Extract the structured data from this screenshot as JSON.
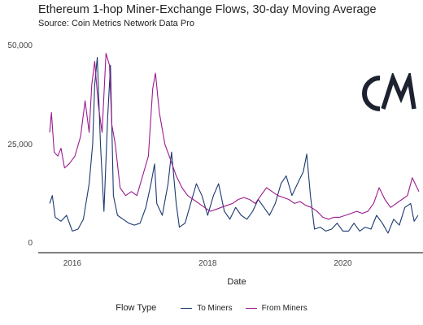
{
  "colors": {
    "to_miners": "#1a3a6e",
    "from_miners": "#9b1b8f",
    "axis": "#000000",
    "text": "#222222",
    "logo": "#1c2230"
  },
  "header": {
    "title": "Ethereum 1-hop Miner-Exchange Flows, 30-day Moving Average",
    "subtitle": "Source: Coin Metrics Network Data Pro"
  },
  "logo": {
    "text": "CM",
    "icon": "coin-metrics-logo"
  },
  "legend": {
    "title": "Flow Type",
    "items": [
      {
        "label": "To Miners",
        "color": "#1a3a6e"
      },
      {
        "label": "From Miners",
        "color": "#9b1b8f"
      }
    ]
  },
  "chart_data": {
    "type": "line",
    "title": "Ethereum 1-hop Miner-Exchange Flows, 30-day Moving Average",
    "subtitle": "Source: Coin Metrics Network Data Pro",
    "xlabel": "Date",
    "ylabel": "",
    "x_ticks": [
      "2016",
      "2018",
      "2020"
    ],
    "y_ticks": [
      "0",
      "25,000",
      "50,000"
    ],
    "ylim": [
      0,
      50000
    ],
    "xlim": [
      "2015-07-01",
      "2021-02-28"
    ],
    "grid": false,
    "legend_position": "bottom",
    "series": [
      {
        "name": "To Miners",
        "points": [
          [
            "2015-09-01",
            10000
          ],
          [
            "2015-09-15",
            12000
          ],
          [
            "2015-10-01",
            6500
          ],
          [
            "2015-11-01",
            5500
          ],
          [
            "2015-12-01",
            7000
          ],
          [
            "2016-01-01",
            3000
          ],
          [
            "2016-02-01",
            3500
          ],
          [
            "2016-03-01",
            6000
          ],
          [
            "2016-04-01",
            15000
          ],
          [
            "2016-04-20",
            25000
          ],
          [
            "2016-05-01",
            40000
          ],
          [
            "2016-05-15",
            47000
          ],
          [
            "2016-06-01",
            25000
          ],
          [
            "2016-06-20",
            8000
          ],
          [
            "2016-07-10",
            32000
          ],
          [
            "2016-07-25",
            45000
          ],
          [
            "2016-08-10",
            12000
          ],
          [
            "2016-09-01",
            7000
          ],
          [
            "2016-10-01",
            6000
          ],
          [
            "2016-11-01",
            5000
          ],
          [
            "2016-12-01",
            4500
          ],
          [
            "2017-01-01",
            5000
          ],
          [
            "2017-02-01",
            9000
          ],
          [
            "2017-03-01",
            15000
          ],
          [
            "2017-03-20",
            20000
          ],
          [
            "2017-04-01",
            10000
          ],
          [
            "2017-05-01",
            7000
          ],
          [
            "2017-06-01",
            15000
          ],
          [
            "2017-06-20",
            23000
          ],
          [
            "2017-07-15",
            10000
          ],
          [
            "2017-08-01",
            4000
          ],
          [
            "2017-09-01",
            5000
          ],
          [
            "2017-10-01",
            10000
          ],
          [
            "2017-11-01",
            15000
          ],
          [
            "2017-12-01",
            12000
          ],
          [
            "2018-01-01",
            7000
          ],
          [
            "2018-02-01",
            12000
          ],
          [
            "2018-03-01",
            15000
          ],
          [
            "2018-04-01",
            8000
          ],
          [
            "2018-05-01",
            6000
          ],
          [
            "2018-06-01",
            9000
          ],
          [
            "2018-07-01",
            7000
          ],
          [
            "2018-08-01",
            6000
          ],
          [
            "2018-09-01",
            8000
          ],
          [
            "2018-10-01",
            11000
          ],
          [
            "2018-11-01",
            9000
          ],
          [
            "2018-12-01",
            7000
          ],
          [
            "2019-01-01",
            10000
          ],
          [
            "2019-02-01",
            15000
          ],
          [
            "2019-03-01",
            17000
          ],
          [
            "2019-04-01",
            12000
          ],
          [
            "2019-05-01",
            15000
          ],
          [
            "2019-06-01",
            18000
          ],
          [
            "2019-06-20",
            22500
          ],
          [
            "2019-07-10",
            12000
          ],
          [
            "2019-08-01",
            3500
          ],
          [
            "2019-09-01",
            4000
          ],
          [
            "2019-10-01",
            3000
          ],
          [
            "2019-11-01",
            3500
          ],
          [
            "2019-12-01",
            5000
          ],
          [
            "2020-01-01",
            3000
          ],
          [
            "2020-02-01",
            3000
          ],
          [
            "2020-03-01",
            5000
          ],
          [
            "2020-04-01",
            3000
          ],
          [
            "2020-05-01",
            4000
          ],
          [
            "2020-06-01",
            3500
          ],
          [
            "2020-07-01",
            7000
          ],
          [
            "2020-08-01",
            5000
          ],
          [
            "2020-09-01",
            2500
          ],
          [
            "2020-10-01",
            6000
          ],
          [
            "2020-11-01",
            4500
          ],
          [
            "2020-12-01",
            9000
          ],
          [
            "2021-01-01",
            10000
          ],
          [
            "2021-01-20",
            5500
          ],
          [
            "2021-02-10",
            7000
          ]
        ]
      },
      {
        "name": "From Miners",
        "points": [
          [
            "2015-09-01",
            28000
          ],
          [
            "2015-09-10",
            33000
          ],
          [
            "2015-09-25",
            23000
          ],
          [
            "2015-10-15",
            22000
          ],
          [
            "2015-11-01",
            24000
          ],
          [
            "2015-11-20",
            19000
          ],
          [
            "2015-12-15",
            20000
          ],
          [
            "2016-01-15",
            22000
          ],
          [
            "2016-02-15",
            27000
          ],
          [
            "2016-03-10",
            36000
          ],
          [
            "2016-04-01",
            28000
          ],
          [
            "2016-04-15",
            40000
          ],
          [
            "2016-05-01",
            46000
          ],
          [
            "2016-05-20",
            35000
          ],
          [
            "2016-06-10",
            28000
          ],
          [
            "2016-07-01",
            48000
          ],
          [
            "2016-07-20",
            45000
          ],
          [
            "2016-08-01",
            30000
          ],
          [
            "2016-08-20",
            25000
          ],
          [
            "2016-09-15",
            14000
          ],
          [
            "2016-10-15",
            12000
          ],
          [
            "2016-11-15",
            13000
          ],
          [
            "2016-12-15",
            12000
          ],
          [
            "2017-01-15",
            17000
          ],
          [
            "2017-02-15",
            22000
          ],
          [
            "2017-03-10",
            39000
          ],
          [
            "2017-03-25",
            43000
          ],
          [
            "2017-04-15",
            33000
          ],
          [
            "2017-05-15",
            25000
          ],
          [
            "2017-06-15",
            21000
          ],
          [
            "2017-07-15",
            17000
          ],
          [
            "2017-08-15",
            14000
          ],
          [
            "2017-09-15",
            12000
          ],
          [
            "2017-10-15",
            11000
          ],
          [
            "2017-11-15",
            10000
          ],
          [
            "2017-12-15",
            9000
          ],
          [
            "2018-01-15",
            8000
          ],
          [
            "2018-02-15",
            8500
          ],
          [
            "2018-03-15",
            9000
          ],
          [
            "2018-04-15",
            9500
          ],
          [
            "2018-05-15",
            10000
          ],
          [
            "2018-06-15",
            11000
          ],
          [
            "2018-07-15",
            11500
          ],
          [
            "2018-08-15",
            11000
          ],
          [
            "2018-09-15",
            10000
          ],
          [
            "2018-10-15",
            12000
          ],
          [
            "2018-11-15",
            14000
          ],
          [
            "2018-12-15",
            13000
          ],
          [
            "2019-01-15",
            12000
          ],
          [
            "2019-02-15",
            11500
          ],
          [
            "2019-03-15",
            11000
          ],
          [
            "2019-04-15",
            10000
          ],
          [
            "2019-05-15",
            10500
          ],
          [
            "2019-06-15",
            9500
          ],
          [
            "2019-07-15",
            9000
          ],
          [
            "2019-08-15",
            8000
          ],
          [
            "2019-09-15",
            6500
          ],
          [
            "2019-10-15",
            6000
          ],
          [
            "2019-11-15",
            6500
          ],
          [
            "2019-12-15",
            6500
          ],
          [
            "2020-01-15",
            7000
          ],
          [
            "2020-02-15",
            7500
          ],
          [
            "2020-03-15",
            8000
          ],
          [
            "2020-04-15",
            7500
          ],
          [
            "2020-05-15",
            8000
          ],
          [
            "2020-06-15",
            10000
          ],
          [
            "2020-07-15",
            14000
          ],
          [
            "2020-08-15",
            11000
          ],
          [
            "2020-09-15",
            9000
          ],
          [
            "2020-10-15",
            10000
          ],
          [
            "2020-11-15",
            11000
          ],
          [
            "2020-12-15",
            12000
          ],
          [
            "2021-01-10",
            16500
          ],
          [
            "2021-01-25",
            15000
          ],
          [
            "2021-02-15",
            13000
          ]
        ]
      }
    ]
  }
}
